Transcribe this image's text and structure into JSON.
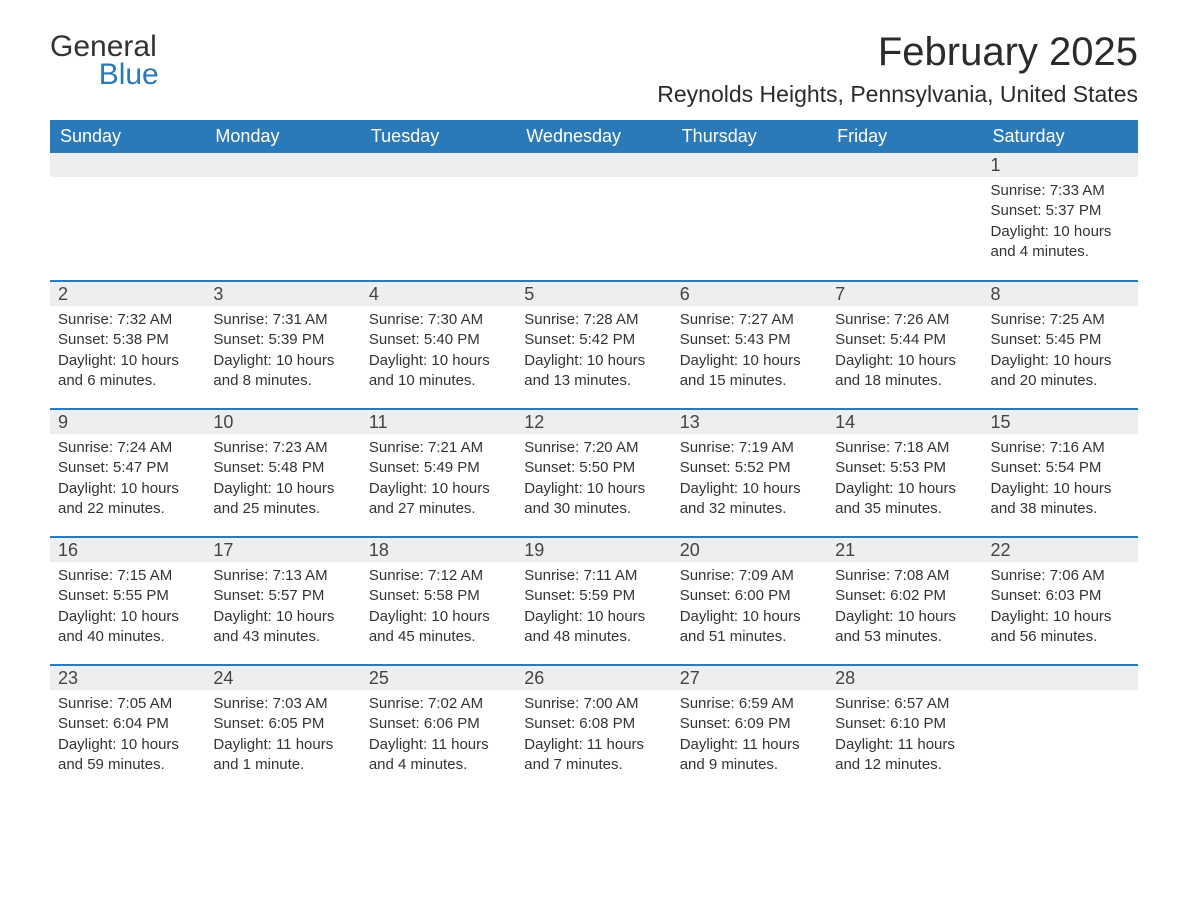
{
  "logo": {
    "part1": "General",
    "part2": "Blue"
  },
  "title": "February 2025",
  "location": "Reynolds Heights, Pennsylvania, United States",
  "colors": {
    "header_bg": "#2a7ab9",
    "header_text": "#ffffff",
    "daynum_bg": "#eeeeee",
    "row_border": "#2a7ab9",
    "text": "#333333",
    "background": "#ffffff"
  },
  "weekdays": [
    "Sunday",
    "Monday",
    "Tuesday",
    "Wednesday",
    "Thursday",
    "Friday",
    "Saturday"
  ],
  "weeks": [
    [
      null,
      null,
      null,
      null,
      null,
      null,
      {
        "day": "1",
        "sunrise": "Sunrise: 7:33 AM",
        "sunset": "Sunset: 5:37 PM",
        "daylight": "Daylight: 10 hours and 4 minutes."
      }
    ],
    [
      {
        "day": "2",
        "sunrise": "Sunrise: 7:32 AM",
        "sunset": "Sunset: 5:38 PM",
        "daylight": "Daylight: 10 hours and 6 minutes."
      },
      {
        "day": "3",
        "sunrise": "Sunrise: 7:31 AM",
        "sunset": "Sunset: 5:39 PM",
        "daylight": "Daylight: 10 hours and 8 minutes."
      },
      {
        "day": "4",
        "sunrise": "Sunrise: 7:30 AM",
        "sunset": "Sunset: 5:40 PM",
        "daylight": "Daylight: 10 hours and 10 minutes."
      },
      {
        "day": "5",
        "sunrise": "Sunrise: 7:28 AM",
        "sunset": "Sunset: 5:42 PM",
        "daylight": "Daylight: 10 hours and 13 minutes."
      },
      {
        "day": "6",
        "sunrise": "Sunrise: 7:27 AM",
        "sunset": "Sunset: 5:43 PM",
        "daylight": "Daylight: 10 hours and 15 minutes."
      },
      {
        "day": "7",
        "sunrise": "Sunrise: 7:26 AM",
        "sunset": "Sunset: 5:44 PM",
        "daylight": "Daylight: 10 hours and 18 minutes."
      },
      {
        "day": "8",
        "sunrise": "Sunrise: 7:25 AM",
        "sunset": "Sunset: 5:45 PM",
        "daylight": "Daylight: 10 hours and 20 minutes."
      }
    ],
    [
      {
        "day": "9",
        "sunrise": "Sunrise: 7:24 AM",
        "sunset": "Sunset: 5:47 PM",
        "daylight": "Daylight: 10 hours and 22 minutes."
      },
      {
        "day": "10",
        "sunrise": "Sunrise: 7:23 AM",
        "sunset": "Sunset: 5:48 PM",
        "daylight": "Daylight: 10 hours and 25 minutes."
      },
      {
        "day": "11",
        "sunrise": "Sunrise: 7:21 AM",
        "sunset": "Sunset: 5:49 PM",
        "daylight": "Daylight: 10 hours and 27 minutes."
      },
      {
        "day": "12",
        "sunrise": "Sunrise: 7:20 AM",
        "sunset": "Sunset: 5:50 PM",
        "daylight": "Daylight: 10 hours and 30 minutes."
      },
      {
        "day": "13",
        "sunrise": "Sunrise: 7:19 AM",
        "sunset": "Sunset: 5:52 PM",
        "daylight": "Daylight: 10 hours and 32 minutes."
      },
      {
        "day": "14",
        "sunrise": "Sunrise: 7:18 AM",
        "sunset": "Sunset: 5:53 PM",
        "daylight": "Daylight: 10 hours and 35 minutes."
      },
      {
        "day": "15",
        "sunrise": "Sunrise: 7:16 AM",
        "sunset": "Sunset: 5:54 PM",
        "daylight": "Daylight: 10 hours and 38 minutes."
      }
    ],
    [
      {
        "day": "16",
        "sunrise": "Sunrise: 7:15 AM",
        "sunset": "Sunset: 5:55 PM",
        "daylight": "Daylight: 10 hours and 40 minutes."
      },
      {
        "day": "17",
        "sunrise": "Sunrise: 7:13 AM",
        "sunset": "Sunset: 5:57 PM",
        "daylight": "Daylight: 10 hours and 43 minutes."
      },
      {
        "day": "18",
        "sunrise": "Sunrise: 7:12 AM",
        "sunset": "Sunset: 5:58 PM",
        "daylight": "Daylight: 10 hours and 45 minutes."
      },
      {
        "day": "19",
        "sunrise": "Sunrise: 7:11 AM",
        "sunset": "Sunset: 5:59 PM",
        "daylight": "Daylight: 10 hours and 48 minutes."
      },
      {
        "day": "20",
        "sunrise": "Sunrise: 7:09 AM",
        "sunset": "Sunset: 6:00 PM",
        "daylight": "Daylight: 10 hours and 51 minutes."
      },
      {
        "day": "21",
        "sunrise": "Sunrise: 7:08 AM",
        "sunset": "Sunset: 6:02 PM",
        "daylight": "Daylight: 10 hours and 53 minutes."
      },
      {
        "day": "22",
        "sunrise": "Sunrise: 7:06 AM",
        "sunset": "Sunset: 6:03 PM",
        "daylight": "Daylight: 10 hours and 56 minutes."
      }
    ],
    [
      {
        "day": "23",
        "sunrise": "Sunrise: 7:05 AM",
        "sunset": "Sunset: 6:04 PM",
        "daylight": "Daylight: 10 hours and 59 minutes."
      },
      {
        "day": "24",
        "sunrise": "Sunrise: 7:03 AM",
        "sunset": "Sunset: 6:05 PM",
        "daylight": "Daylight: 11 hours and 1 minute."
      },
      {
        "day": "25",
        "sunrise": "Sunrise: 7:02 AM",
        "sunset": "Sunset: 6:06 PM",
        "daylight": "Daylight: 11 hours and 4 minutes."
      },
      {
        "day": "26",
        "sunrise": "Sunrise: 7:00 AM",
        "sunset": "Sunset: 6:08 PM",
        "daylight": "Daylight: 11 hours and 7 minutes."
      },
      {
        "day": "27",
        "sunrise": "Sunrise: 6:59 AM",
        "sunset": "Sunset: 6:09 PM",
        "daylight": "Daylight: 11 hours and 9 minutes."
      },
      {
        "day": "28",
        "sunrise": "Sunrise: 6:57 AM",
        "sunset": "Sunset: 6:10 PM",
        "daylight": "Daylight: 11 hours and 12 minutes."
      },
      null
    ]
  ]
}
